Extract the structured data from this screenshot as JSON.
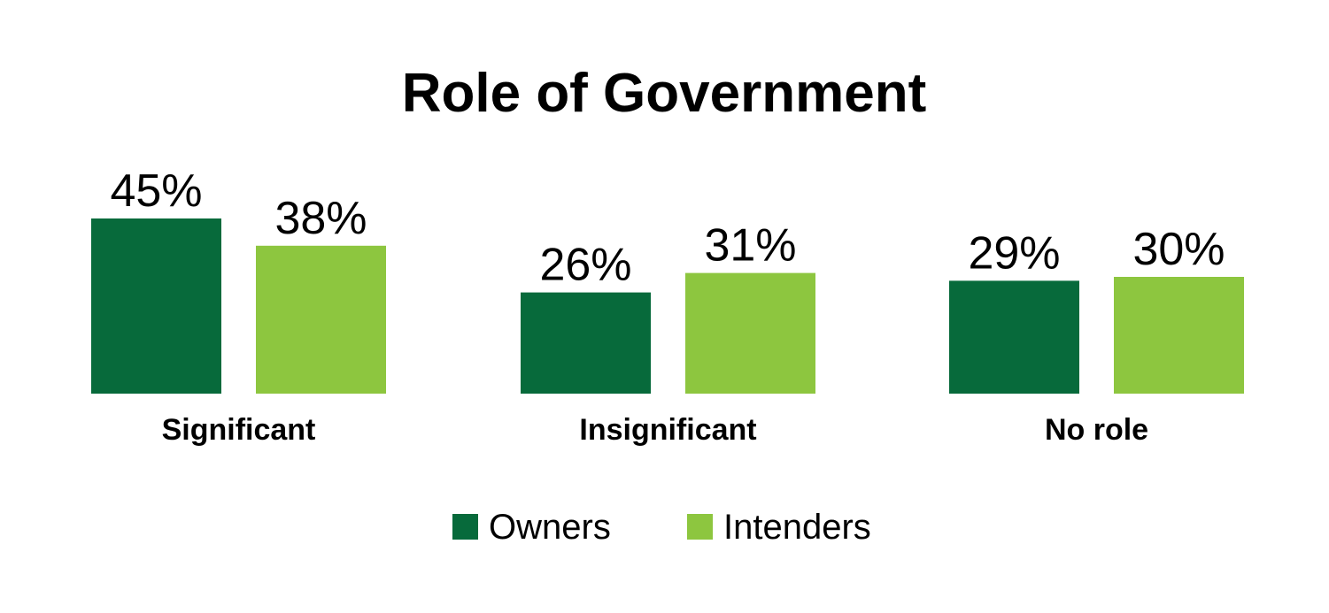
{
  "chart_data": {
    "type": "bar",
    "title": "Role of Government",
    "xlabel": "",
    "ylabel": "",
    "categories": [
      "Significant",
      "Insignificant",
      "No role"
    ],
    "series": [
      {
        "name": "Owners",
        "values": [
          45,
          26,
          29
        ],
        "labels": [
          "45%",
          "26%",
          "29%"
        ],
        "color": "#076a3b"
      },
      {
        "name": "Intenders",
        "values": [
          38,
          31,
          30
        ],
        "labels": [
          "38%",
          "31%",
          "30%"
        ],
        "color": "#8dc63f"
      }
    ],
    "ylim": [
      0,
      45
    ],
    "value_unit": "%",
    "grid": false,
    "y_axis_visible": false,
    "legend_position": "bottom"
  }
}
